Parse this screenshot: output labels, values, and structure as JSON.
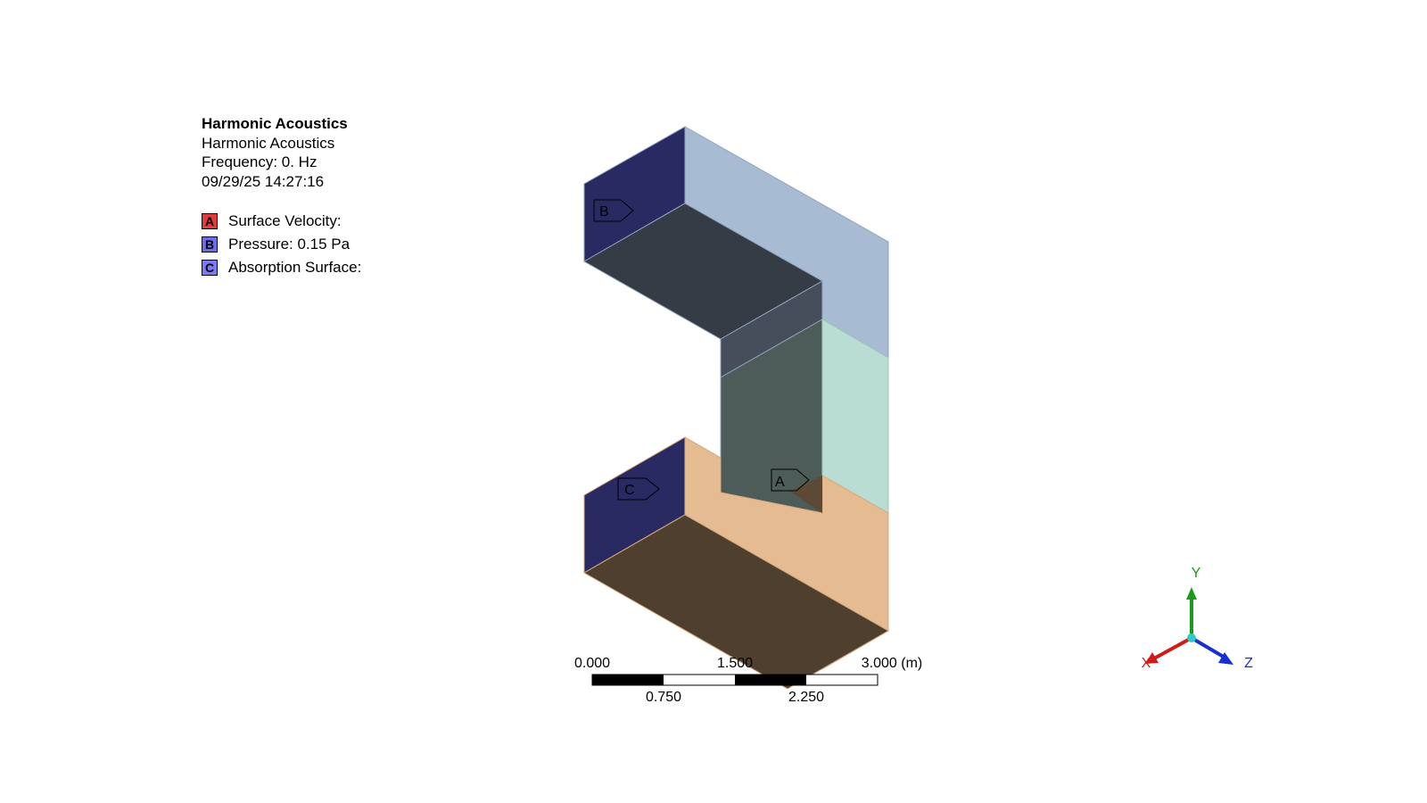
{
  "header": {
    "title": "Harmonic Acoustics",
    "subtitle": "Harmonic Acoustics",
    "frequency": "Frequency: 0. Hz",
    "timestamp": "09/29/25 14:27:16"
  },
  "legend": [
    {
      "letter": "A",
      "label": "Surface Velocity:",
      "color": "#e03a3a"
    },
    {
      "letter": "B",
      "label": "Pressure: 0.15 Pa",
      "color": "#6b6bf0"
    },
    {
      "letter": "C",
      "label": "Absorption Surface:",
      "color": "#7a7af5"
    }
  ],
  "model_tags": {
    "a": "A",
    "b": "B",
    "c": "C"
  },
  "scale_bar": {
    "top_labels": [
      "0.000",
      "1.500",
      "3.000 (m)"
    ],
    "bottom_labels": [
      "0.750",
      "2.250"
    ]
  },
  "triad": {
    "x": "X",
    "y": "Y",
    "z": "Z"
  },
  "colors": {
    "dark_blue_face": "#2a2a62",
    "light_blue_face": "#a7bbd3",
    "dark_gray_face": "#363c45",
    "mint_face": "#b9ddd2",
    "green_gray_face": "#4d5c58",
    "peach_face": "#e5bb91",
    "brown_face": "#4e3f2f",
    "axis_x": "#d11a1a",
    "axis_y": "#1a9a1a",
    "axis_z": "#1a2fd1"
  }
}
